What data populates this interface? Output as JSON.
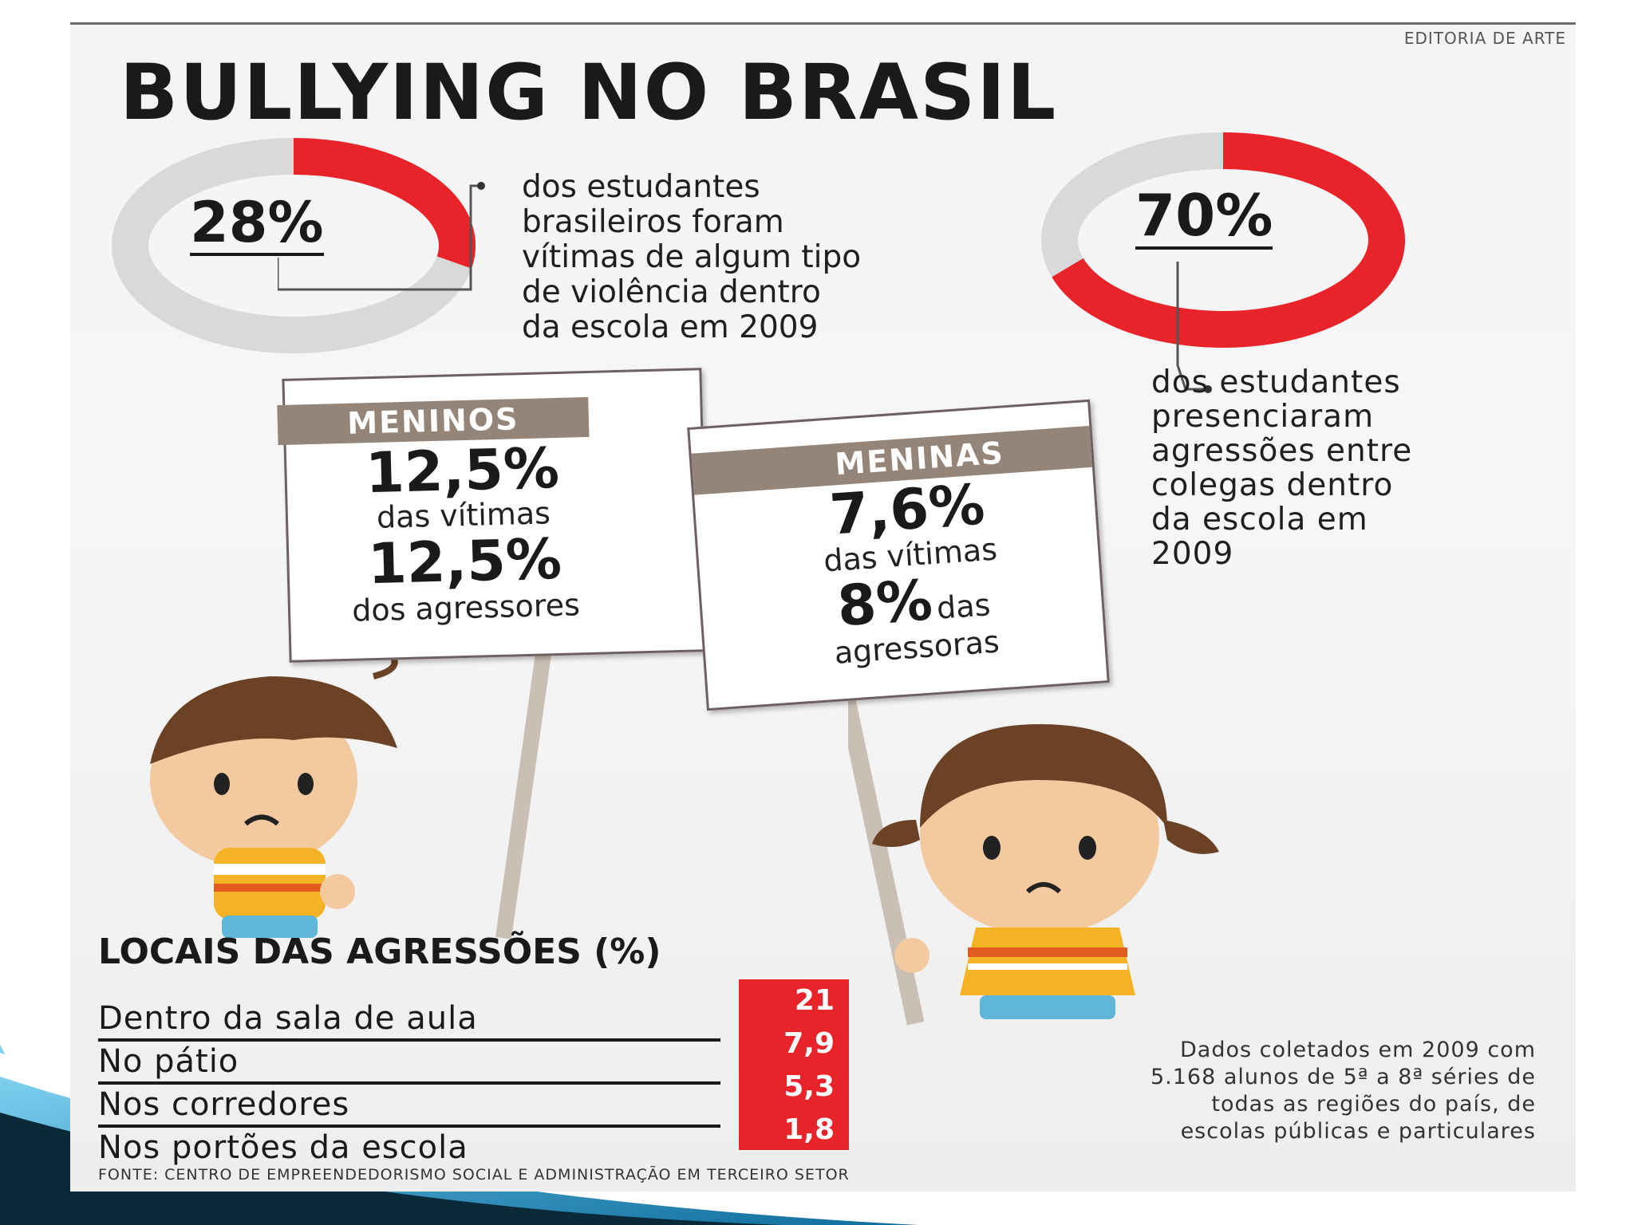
{
  "credit": "EDITORIA DE ARTE",
  "title": "BULLYING NO BRASIL",
  "stat_victims": {
    "value": "28%",
    "fraction": 0.28,
    "lines": [
      "dos estudantes",
      "brasileiros foram",
      "vítimas de algum tipo",
      "de violência dentro",
      "da escola em 2009"
    ]
  },
  "stat_witness": {
    "value": "70%",
    "fraction": 0.7,
    "lines": [
      "dos estudantes",
      "presenciaram",
      "agressões entre",
      "colegas dentro",
      "da escola em",
      "2009"
    ]
  },
  "boys_sign": {
    "heading": "MENINOS",
    "victims_pct": "12,5%",
    "victims_label": "das vítimas",
    "aggressors_pct": "12,5%",
    "aggressors_label": "dos agressores"
  },
  "girls_sign": {
    "heading": "MENINAS",
    "victims_pct": "7,6%",
    "victims_label": "das vítimas",
    "aggressors_pct": "8%",
    "aggressors_label_1": "das",
    "aggressors_label_2": "agressoras"
  },
  "locations": {
    "title": "LOCAIS DAS AGRESSÕES (%)",
    "rows": [
      {
        "label": "Dentro da sala de aula",
        "value": "21"
      },
      {
        "label": "No pátio",
        "value": "7,9"
      },
      {
        "label": "Nos corredores",
        "value": "5,3"
      },
      {
        "label": "Nos portões da escola",
        "value": "1,8"
      }
    ]
  },
  "note_lines": [
    "Dados coletados em 2009 com",
    "5.168 alunos de 5ª a 8ª séries de",
    "todas as regiões do país, de",
    "escolas públicas e particulares"
  ],
  "source": "FONTE: CENTRO DE EMPREENDEDORISMO SOCIAL E ADMINISTRAÇÃO EM TERCEIRO SETOR",
  "colors": {
    "accent": "#e8232a",
    "ring_bg": "#d9d9d9",
    "sign_header": "#958478",
    "slide_blue": "#1a86b8"
  }
}
